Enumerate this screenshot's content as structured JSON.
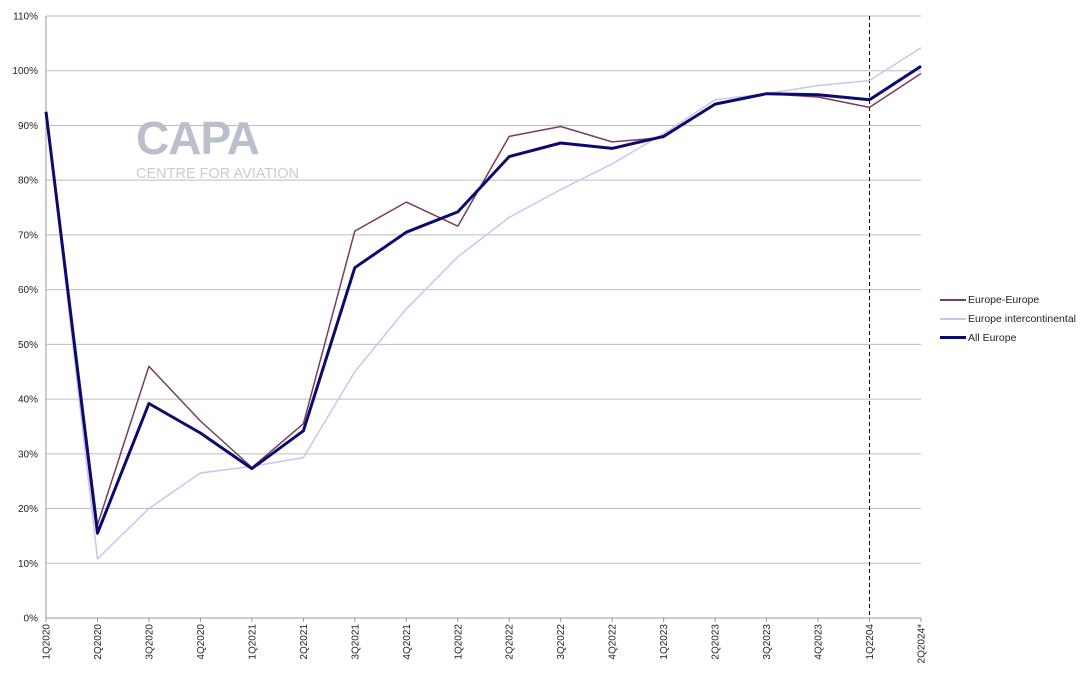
{
  "watermark": {
    "brand": "CAPA",
    "tagline": "CENTRE FOR AVIATION"
  },
  "chart_data": {
    "type": "line",
    "title": "",
    "xlabel": "",
    "ylabel": "",
    "categories": [
      "1Q2020",
      "2Q2020",
      "3Q2020",
      "4Q2020",
      "1Q2021",
      "2Q2021",
      "3Q2021",
      "4Q2021",
      "1Q2022",
      "2Q2022",
      "3Q2022",
      "4Q2022",
      "1Q2023",
      "2Q2023",
      "3Q2023",
      "4Q2023",
      "1Q2204",
      "2Q2024*"
    ],
    "ylim": [
      0,
      110
    ],
    "yticks": [
      0,
      10,
      20,
      30,
      40,
      50,
      60,
      70,
      80,
      90,
      100,
      110
    ],
    "ytick_labels": [
      "0%",
      "10%",
      "20%",
      "30%",
      "40%",
      "50%",
      "60%",
      "70%",
      "80%",
      "90%",
      "100%",
      "110%"
    ],
    "grid": "horizontal",
    "legend_position": "right",
    "marker_line": {
      "category": "1Q2204",
      "style": "dashed"
    },
    "series": [
      {
        "name": "Europe-Europe",
        "color": "#7b3b5e",
        "width": 1.5,
        "values": [
          92.5,
          17,
          46,
          36,
          27.5,
          35.5,
          70.7,
          76,
          71.6,
          88,
          89.8,
          87,
          87.8,
          94,
          95.8,
          95.2,
          93.3,
          99.5
        ]
      },
      {
        "name": "Europe intercontinental",
        "color": "#c6c6f0",
        "width": 1.5,
        "values": [
          92.5,
          10.8,
          20,
          26.5,
          27.7,
          29.3,
          45,
          56.5,
          66,
          73.2,
          78.3,
          83,
          88.5,
          94.7,
          95.8,
          97.3,
          98.2,
          104.2
        ]
      },
      {
        "name": "All Europe",
        "color": "#0b0b6e",
        "width": 3,
        "values": [
          92.5,
          15.5,
          39.2,
          33.8,
          27.3,
          34.2,
          64,
          70.5,
          74.2,
          84.3,
          86.8,
          85.8,
          88,
          93.9,
          95.8,
          95.6,
          94.7,
          100.8
        ]
      }
    ]
  }
}
